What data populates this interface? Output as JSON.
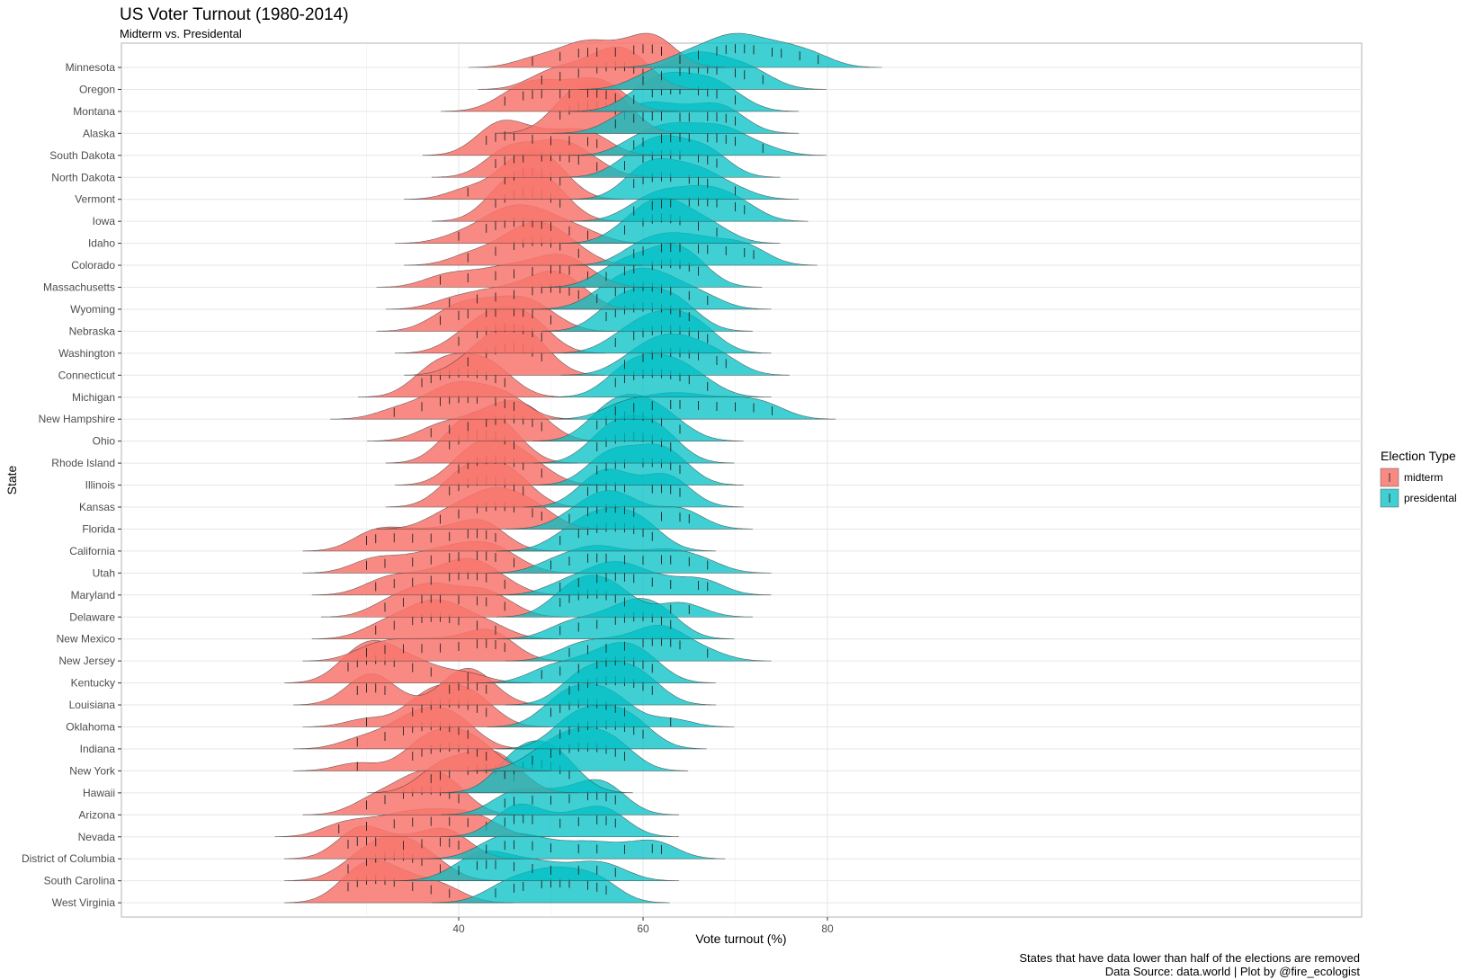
{
  "chart_data": {
    "type": "ridgeline",
    "title": "US Voter Turnout (1980-2014)",
    "subtitle": "Midterm vs. Presidental",
    "xlabel": "Vote turnout (%)",
    "ylabel": "State",
    "xlim": [
      22,
      86
    ],
    "x_ticks": [
      40,
      60,
      80
    ],
    "grid": true,
    "legend": {
      "title": "Election Type",
      "placement": "right",
      "entries": [
        {
          "name": "midterm",
          "color": "#F8766D"
        },
        {
          "name": "presidental",
          "color": "#00BFC4"
        }
      ]
    },
    "caption": [
      "States that have data lower than half of the elections are removed",
      "Data Source: data.world | Plot by @fire_ecologist"
    ],
    "states": [
      {
        "name": "Minnesota",
        "midterm": [
          48,
          51,
          53,
          54,
          55,
          57,
          59,
          60,
          61,
          62,
          62
        ],
        "presidental": [
          64,
          66,
          68,
          69,
          70,
          71,
          72,
          74,
          75,
          77,
          79
        ]
      },
      {
        "name": "Oregon",
        "midterm": [
          49,
          51,
          53,
          55,
          56,
          57,
          58,
          59,
          60
        ],
        "presidental": [
          60,
          62,
          64,
          65,
          66,
          67,
          68,
          70,
          71,
          73
        ]
      },
      {
        "name": "Montana",
        "midterm": [
          45,
          47,
          48,
          49,
          51,
          52,
          54,
          55,
          56,
          57
        ],
        "presidental": [
          59,
          61,
          62,
          63,
          64,
          66,
          67,
          68,
          70
        ]
      },
      {
        "name": "Alaska",
        "midterm": [
          51,
          52,
          53,
          54,
          55,
          56,
          57,
          58
        ],
        "presidental": [
          57,
          59,
          60,
          61,
          62,
          64,
          65,
          67,
          68,
          69,
          70
        ]
      },
      {
        "name": "South Dakota",
        "midterm": [
          43,
          44,
          45,
          46,
          48,
          50,
          52,
          54,
          55
        ],
        "presidental": [
          59,
          60,
          62,
          63,
          64,
          65,
          67,
          68,
          69,
          70,
          73
        ]
      },
      {
        "name": "North Dakota",
        "midterm": [
          44,
          45,
          46,
          47,
          49,
          50,
          51,
          52,
          53,
          55
        ],
        "presidental": [
          58,
          60,
          61,
          62,
          63,
          64,
          66,
          67,
          68
        ]
      },
      {
        "name": "Vermont",
        "midterm": [
          41,
          45,
          46,
          47,
          48,
          49,
          50,
          51
        ],
        "presidental": [
          59,
          60,
          61,
          62,
          63,
          65,
          66,
          67,
          70
        ]
      },
      {
        "name": "Iowa",
        "midterm": [
          44,
          45,
          46,
          47,
          48,
          49,
          50,
          51
        ],
        "presidental": [
          59,
          61,
          62,
          63,
          65,
          66,
          67,
          68,
          70,
          71
        ]
      },
      {
        "name": "Idaho",
        "midterm": [
          40,
          43,
          44,
          45,
          46,
          47,
          48,
          49,
          50,
          52,
          54
        ],
        "presidental": [
          58,
          60,
          61,
          62,
          63,
          64,
          66,
          68
        ]
      },
      {
        "name": "Colorado",
        "midterm": [
          41,
          44,
          46,
          47,
          48,
          49,
          50,
          51,
          53
        ],
        "presidental": [
          59,
          60,
          62,
          63,
          64,
          66,
          67,
          69,
          71,
          72
        ]
      },
      {
        "name": "Massachusetts",
        "midterm": [
          38,
          41,
          44,
          46,
          48,
          50,
          51,
          52,
          54
        ],
        "presidental": [
          56,
          58,
          59,
          61,
          62,
          63,
          64,
          65,
          66
        ]
      },
      {
        "name": "Wyoming",
        "midterm": [
          39,
          42,
          44,
          46,
          48,
          49,
          50,
          51,
          52,
          53
        ],
        "presidental": [
          55,
          57,
          58,
          59,
          60,
          61,
          62,
          63,
          65,
          67
        ]
      },
      {
        "name": "Nebraska",
        "midterm": [
          38,
          40,
          41,
          43,
          44,
          46,
          47,
          48,
          50
        ],
        "presidental": [
          56,
          57,
          58,
          59,
          60,
          61,
          62,
          63,
          64,
          65
        ]
      },
      {
        "name": "Washington",
        "midterm": [
          40,
          42,
          43,
          44,
          45,
          46,
          47,
          48,
          49
        ],
        "presidental": [
          57,
          59,
          60,
          61,
          62,
          63,
          64,
          65,
          66,
          67
        ]
      },
      {
        "name": "Connecticut",
        "midterm": [
          41,
          43,
          44,
          45,
          46,
          47,
          48,
          49
        ],
        "presidental": [
          58,
          60,
          61,
          62,
          63,
          64,
          65,
          66,
          68,
          69
        ]
      },
      {
        "name": "Michigan",
        "midterm": [
          36,
          37,
          38,
          39,
          40,
          41,
          42,
          43,
          44,
          45
        ],
        "presidental": [
          57,
          58,
          59,
          60,
          61,
          62,
          63,
          64,
          65,
          67
        ]
      },
      {
        "name": "New Hampshire",
        "midterm": [
          33,
          36,
          38,
          39,
          40,
          41,
          42,
          44,
          45,
          46
        ],
        "presidental": [
          57,
          59,
          61,
          63,
          64,
          66,
          68,
          70,
          72,
          74
        ]
      },
      {
        "name": "Ohio",
        "midterm": [
          37,
          39,
          41,
          43,
          44,
          45,
          46,
          47,
          48,
          49
        ],
        "presidental": [
          55,
          56,
          57,
          58,
          59,
          60,
          61,
          62,
          64
        ]
      },
      {
        "name": "Rhode Island",
        "midterm": [
          39,
          40,
          41,
          42,
          43,
          44,
          45,
          46
        ],
        "presidental": [
          55,
          56,
          57,
          58,
          59,
          60,
          61,
          62,
          63
        ]
      },
      {
        "name": "Illinois",
        "midterm": [
          40,
          41,
          42,
          43,
          44,
          45,
          46,
          47,
          49
        ],
        "presidental": [
          55,
          56,
          57,
          58,
          60,
          61,
          62,
          63,
          64
        ]
      },
      {
        "name": "Kansas",
        "midterm": [
          39,
          40,
          41,
          42,
          43,
          44,
          45,
          46,
          47
        ],
        "presidental": [
          54,
          55,
          56,
          57,
          58,
          61,
          62,
          63,
          64
        ]
      },
      {
        "name": "Florida",
        "midterm": [
          38,
          40,
          42,
          43,
          44,
          45,
          46,
          48,
          49
        ],
        "presidental": [
          52,
          54,
          55,
          56,
          57,
          58,
          59,
          62,
          64,
          65
        ]
      },
      {
        "name": "California",
        "midterm": [
          30,
          31,
          33,
          35,
          37,
          39,
          41,
          42,
          43,
          44
        ],
        "presidental": [
          51,
          53,
          54,
          55,
          56,
          57,
          58,
          59,
          60,
          61
        ]
      },
      {
        "name": "Utah",
        "midterm": [
          30,
          32,
          35,
          37,
          39,
          40,
          42,
          43,
          44,
          46
        ],
        "presidental": [
          50,
          52,
          54,
          55,
          56,
          58,
          60,
          62,
          63,
          65,
          67
        ]
      },
      {
        "name": "Maryland",
        "midterm": [
          31,
          33,
          35,
          37,
          39,
          40,
          41,
          42,
          43,
          45
        ],
        "presidental": [
          51,
          53,
          55,
          56,
          57,
          58,
          59,
          61,
          63,
          66,
          67
        ]
      },
      {
        "name": "Delaware",
        "midterm": [
          32,
          34,
          36,
          37,
          38,
          40,
          42,
          43,
          45
        ],
        "presidental": [
          51,
          52,
          53,
          54,
          55,
          56,
          57,
          58,
          63,
          65
        ]
      },
      {
        "name": "New Mexico",
        "midterm": [
          31,
          33,
          35,
          36,
          37,
          38,
          39,
          40,
          42,
          44
        ],
        "presidental": [
          51,
          53,
          55,
          57,
          58,
          59,
          60,
          61,
          62,
          63
        ]
      },
      {
        "name": "New Jersey",
        "midterm": [
          30,
          32,
          34,
          36,
          38,
          40,
          42,
          43,
          44,
          45
        ],
        "presidental": [
          52,
          54,
          56,
          58,
          60,
          61,
          62,
          63,
          64,
          67
        ]
      },
      {
        "name": "Kentucky",
        "midterm": [
          28,
          29,
          30,
          31,
          32,
          33,
          35,
          37,
          41
        ],
        "presidental": [
          49,
          51,
          53,
          55,
          56,
          57,
          58,
          59,
          60,
          61
        ]
      },
      {
        "name": "Louisiana",
        "midterm": [
          29,
          30,
          31,
          32,
          39,
          40,
          41,
          42,
          43
        ],
        "presidental": [
          52,
          53,
          54,
          55,
          56,
          57,
          58,
          59,
          60,
          61
        ]
      },
      {
        "name": "Oklahoma",
        "midterm": [
          30,
          35,
          36,
          37,
          38,
          39,
          40,
          41,
          42,
          43
        ],
        "presidental": [
          50,
          51,
          52,
          53,
          54,
          55,
          56,
          57,
          58,
          63
        ]
      },
      {
        "name": "Indiana",
        "midterm": [
          29,
          32,
          34,
          35,
          36,
          37,
          38,
          39,
          40,
          41
        ],
        "presidental": [
          51,
          52,
          53,
          54,
          55,
          56,
          57,
          58,
          59,
          60
        ]
      },
      {
        "name": "New York",
        "midterm": [
          29,
          35,
          36,
          37,
          38,
          39,
          40,
          41,
          42,
          43
        ],
        "presidental": [
          48,
          50,
          51,
          52,
          53,
          54,
          55,
          56,
          57,
          58
        ]
      },
      {
        "name": "Hawaii",
        "midterm": [
          37,
          38,
          39,
          41,
          42,
          43,
          44,
          45,
          46
        ],
        "presidental": [
          45,
          46,
          47,
          48,
          49,
          50,
          51,
          52
        ]
      },
      {
        "name": "Arizona",
        "midterm": [
          30,
          32,
          34,
          35,
          36,
          37,
          38,
          39,
          40
        ],
        "presidental": [
          45,
          46,
          48,
          50,
          52,
          54,
          55,
          56,
          57
        ]
      },
      {
        "name": "Nevada",
        "midterm": [
          27,
          30,
          33,
          35,
          37,
          39,
          41,
          43
        ],
        "presidental": [
          45,
          46,
          47,
          48,
          51,
          53,
          55,
          56,
          57
        ]
      },
      {
        "name": "District of Columbia",
        "midterm": [
          28,
          29,
          30,
          31,
          34,
          36,
          38,
          39,
          40
        ],
        "presidental": [
          43,
          45,
          46,
          48,
          50,
          53,
          55,
          58,
          61,
          62
        ]
      },
      {
        "name": "South Carolina",
        "midterm": [
          28,
          30,
          31,
          32,
          33,
          34,
          35,
          36,
          38
        ],
        "presidental": [
          40,
          42,
          43,
          44,
          46,
          48,
          50,
          53,
          55,
          57
        ]
      },
      {
        "name": "West Virginia",
        "midterm": [
          28,
          29,
          30,
          31,
          32,
          33,
          35,
          37,
          39
        ],
        "presidental": [
          44,
          46,
          47,
          49,
          50,
          51,
          52,
          54,
          55,
          56
        ]
      }
    ]
  }
}
